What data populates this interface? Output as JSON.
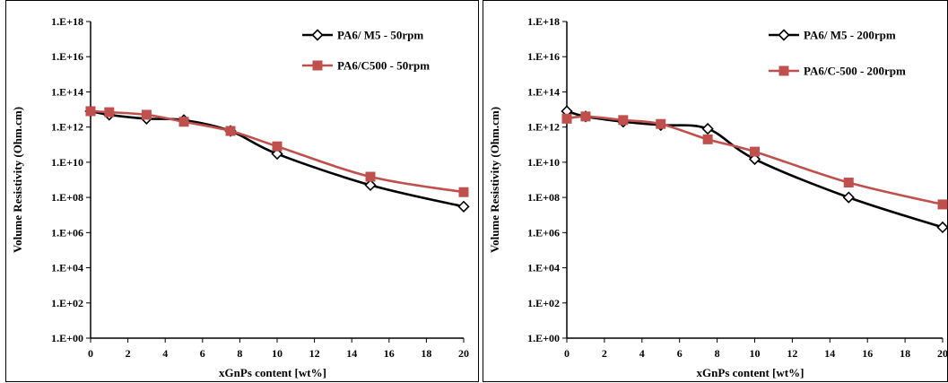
{
  "chart_data": [
    {
      "type": "line",
      "xlabel": "xGnPs content  [wt%]",
      "ylabel": "Volume Resistivity  (Ohm.cm)",
      "xlim": [
        0,
        20
      ],
      "xticks": [
        0,
        2,
        4,
        6,
        8,
        10,
        12,
        14,
        16,
        18,
        20
      ],
      "yscale": "log",
      "ylim": [
        1,
        1e+18
      ],
      "yticks": [
        "1.E+00",
        "1.E+02",
        "1.E+04",
        "1.E+06",
        "1.E+08",
        "1.E+10",
        "1.E+12",
        "1.E+14",
        "1.E+16",
        "1.E+18"
      ],
      "grid": false,
      "legend_position": "top-right",
      "series": [
        {
          "name": "PA6/ M5 - 50rpm",
          "color": "#000000",
          "marker": "diamond-open",
          "x": [
            0,
            1,
            3,
            5,
            7.5,
            10,
            15,
            20
          ],
          "y": [
            8000000000000.0,
            5000000000000.0,
            3000000000000.0,
            2500000000000.0,
            600000000000.0,
            30000000000.0,
            500000000.0,
            30000000.0
          ]
        },
        {
          "name": "PA6/C500 - 50rpm",
          "color": "#c0504d",
          "marker": "square",
          "x": [
            0,
            1,
            3,
            5,
            7.5,
            10,
            15,
            20
          ],
          "y": [
            8000000000000.0,
            7000000000000.0,
            5000000000000.0,
            2000000000000.0,
            600000000000.0,
            80000000000.0,
            1500000000.0,
            200000000.0
          ]
        }
      ]
    },
    {
      "type": "line",
      "xlabel": "xGnPs content  [wt%]",
      "ylabel": "Volume Resistivity  (Ohm.cm)",
      "xlim": [
        0,
        20
      ],
      "xticks": [
        0,
        2,
        4,
        6,
        8,
        10,
        12,
        14,
        16,
        18,
        20
      ],
      "yscale": "log",
      "ylim": [
        1,
        1e+18
      ],
      "yticks": [
        "1.E+00",
        "1.E+02",
        "1.E+04",
        "1.E+06",
        "1.E+08",
        "1.E+10",
        "1.E+12",
        "1.E+14",
        "1.E+16",
        "1.E+18"
      ],
      "grid": false,
      "legend_position": "top-right",
      "series": [
        {
          "name": "PA6/ M5 - 200rpm",
          "color": "#000000",
          "marker": "diamond-open",
          "x": [
            0,
            1,
            3,
            5,
            7.5,
            10,
            15,
            20
          ],
          "y": [
            8000000000000.0,
            4000000000000.0,
            2000000000000.0,
            1300000000000.0,
            800000000000.0,
            15000000000.0,
            100000000.0,
            2000000.0
          ]
        },
        {
          "name": "PA6/C-500 - 200rpm",
          "color": "#c0504d",
          "marker": "square",
          "x": [
            0,
            1,
            3,
            5,
            7.5,
            10,
            15,
            20
          ],
          "y": [
            3000000000000.0,
            4000000000000.0,
            2500000000000.0,
            1500000000000.0,
            200000000000.0,
            40000000000.0,
            700000000.0,
            40000000.0
          ]
        }
      ]
    }
  ]
}
